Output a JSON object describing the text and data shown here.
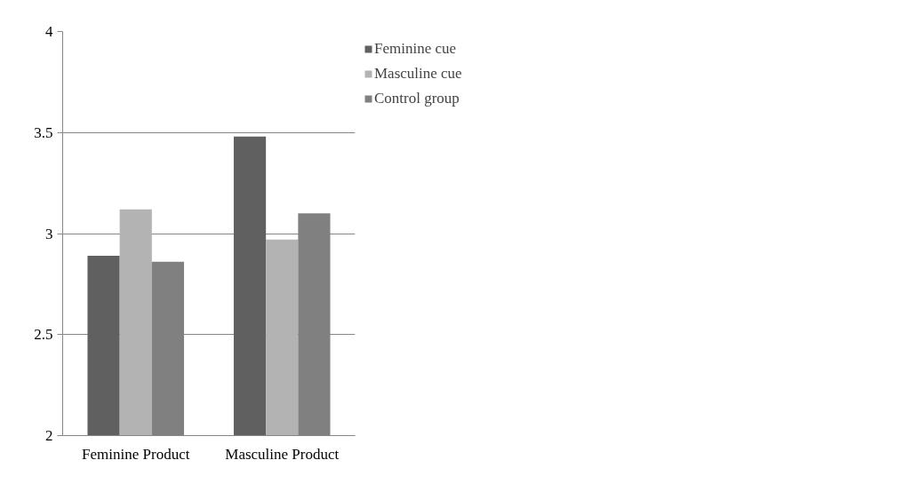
{
  "chart_data": {
    "type": "bar",
    "categories": [
      "Feminine Product",
      "Masculine Product"
    ],
    "series": [
      {
        "name": "Feminine cue",
        "color": "#606060",
        "values": [
          2.89,
          3.48
        ]
      },
      {
        "name": "Masculine cue",
        "color": "#b3b3b3",
        "values": [
          3.12,
          2.97
        ]
      },
      {
        "name": "Control group",
        "color": "#808080",
        "values": [
          2.86,
          3.1
        ]
      }
    ],
    "ylim": [
      2,
      4
    ],
    "yticks": [
      2,
      2.5,
      3,
      3.5,
      4
    ],
    "grid": "y",
    "legend": "top right"
  }
}
